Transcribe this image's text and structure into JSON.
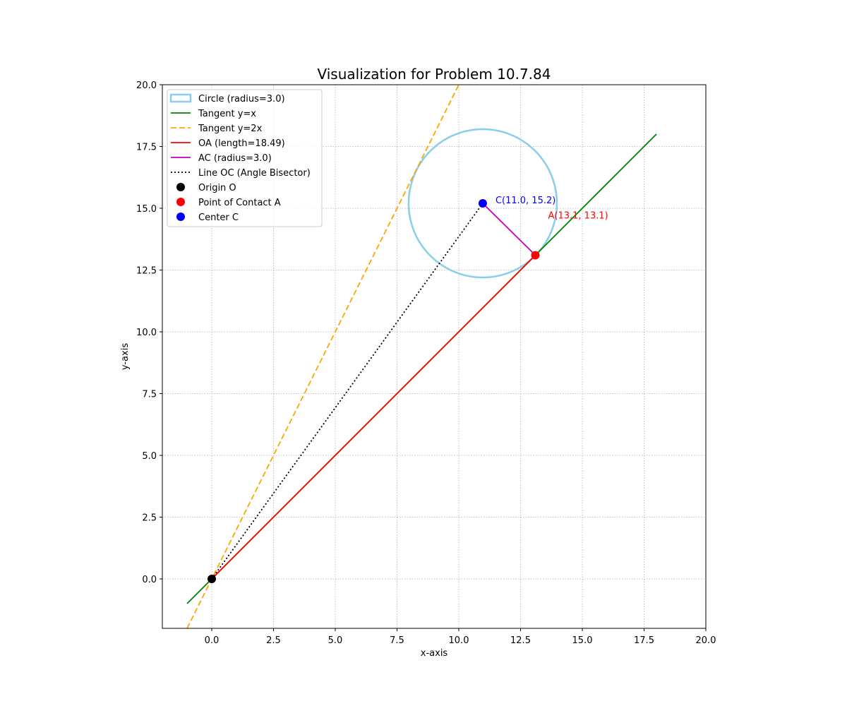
{
  "chart_data": {
    "type": "line",
    "title": "Visualization for Problem 10.7.84",
    "xlabel": "x-axis",
    "ylabel": "y-axis",
    "xlim": [
      -2.0,
      20.0
    ],
    "ylim": [
      -2.0,
      20.0
    ],
    "x_ticks": [
      "0.0",
      "2.5",
      "5.0",
      "7.5",
      "10.0",
      "12.5",
      "15.0",
      "17.5",
      "20.0"
    ],
    "y_ticks": [
      "0.0",
      "2.5",
      "5.0",
      "7.5",
      "10.0",
      "12.5",
      "15.0",
      "17.5",
      "20.0"
    ],
    "grid": true,
    "legend_position": "top-left",
    "circle": {
      "label": "Circle (radius=3.0)",
      "center": [
        10.97,
        15.2
      ],
      "radius": 3.0,
      "color": "#87ceeb"
    },
    "series": [
      {
        "name": "Tangent y=x",
        "color": "#008000",
        "style": "solid",
        "x": [
          -1.0,
          18.0
        ],
        "y": [
          -1.0,
          18.0
        ]
      },
      {
        "name": "Tangent y=2x",
        "color": "#ffa500",
        "style": "dashed",
        "x": [
          -1.0,
          10.0
        ],
        "y": [
          -2.0,
          20.0
        ]
      },
      {
        "name": "OA (length=18.49)",
        "color": "#ff0000",
        "style": "solid",
        "x": [
          0.0,
          13.1
        ],
        "y": [
          0.0,
          13.1
        ]
      },
      {
        "name": "AC (radius=3.0)",
        "color": "#bf00bf",
        "style": "solid",
        "x": [
          13.1,
          10.97
        ],
        "y": [
          13.1,
          15.2
        ]
      },
      {
        "name": "Line OC (Angle Bisector)",
        "color": "#000000",
        "style": "dotted",
        "x": [
          0.0,
          10.97
        ],
        "y": [
          0.0,
          15.2
        ]
      }
    ],
    "points": [
      {
        "name": "Origin O",
        "color": "#000000",
        "x": 0.0,
        "y": 0.0,
        "label": ""
      },
      {
        "name": "Point of Contact A",
        "color": "#ff0000",
        "x": 13.1,
        "y": 13.1,
        "label": "A(13.1, 13.1)"
      },
      {
        "name": "Center C",
        "color": "#0000ff",
        "x": 10.97,
        "y": 15.2,
        "label": "C(11.0, 15.2)"
      }
    ]
  }
}
